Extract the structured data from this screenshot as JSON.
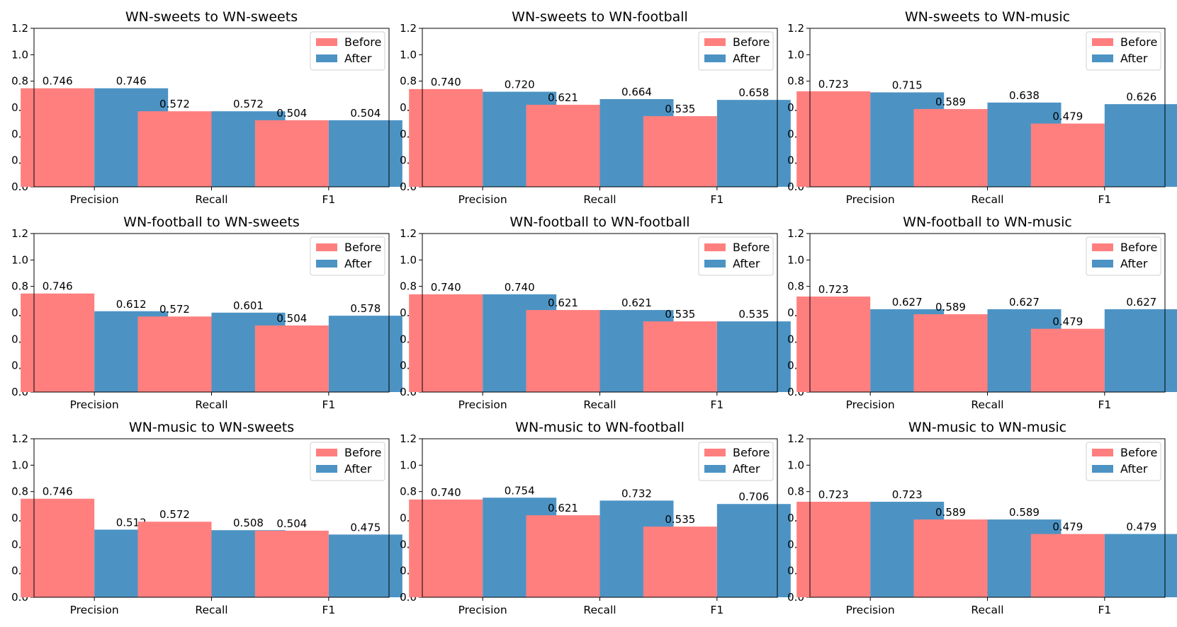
{
  "colors": {
    "before": "#FF7F7F",
    "after": "#4C93C4"
  },
  "legend": {
    "before_label": "Before",
    "after_label": "After",
    "placement": "upper right"
  },
  "chart_data": [
    {
      "type": "bar",
      "title": "WN-sweets to WN-sweets",
      "categories": [
        "Precision",
        "Recall",
        "F1"
      ],
      "series": [
        {
          "name": "Before",
          "values": [
            0.746,
            0.572,
            0.504
          ]
        },
        {
          "name": "After",
          "values": [
            0.746,
            0.572,
            0.504
          ]
        }
      ],
      "ylim": [
        0,
        1.2
      ],
      "yticks": [
        0.0,
        0.2,
        0.4,
        0.6,
        0.8,
        1.0,
        1.2
      ],
      "grid": false,
      "legend": "upper right"
    },
    {
      "type": "bar",
      "title": "WN-sweets to WN-football",
      "categories": [
        "Precision",
        "Recall",
        "F1"
      ],
      "series": [
        {
          "name": "Before",
          "values": [
            0.74,
            0.621,
            0.535
          ]
        },
        {
          "name": "After",
          "values": [
            0.72,
            0.664,
            0.658
          ]
        }
      ],
      "ylim": [
        0,
        1.2
      ],
      "yticks": [
        0.0,
        0.2,
        0.4,
        0.6,
        0.8,
        1.0,
        1.2
      ],
      "grid": false,
      "legend": "upper right"
    },
    {
      "type": "bar",
      "title": "WN-sweets to WN-music",
      "categories": [
        "Precision",
        "Recall",
        "F1"
      ],
      "series": [
        {
          "name": "Before",
          "values": [
            0.723,
            0.589,
            0.479
          ]
        },
        {
          "name": "After",
          "values": [
            0.715,
            0.638,
            0.626
          ]
        }
      ],
      "ylim": [
        0,
        1.2
      ],
      "yticks": [
        0.0,
        0.2,
        0.4,
        0.6,
        0.8,
        1.0,
        1.2
      ],
      "grid": false,
      "legend": "upper right"
    },
    {
      "type": "bar",
      "title": "WN-football to WN-sweets",
      "categories": [
        "Precision",
        "Recall",
        "F1"
      ],
      "series": [
        {
          "name": "Before",
          "values": [
            0.746,
            0.572,
            0.504
          ]
        },
        {
          "name": "After",
          "values": [
            0.612,
            0.601,
            0.578
          ]
        }
      ],
      "ylim": [
        0,
        1.2
      ],
      "yticks": [
        0.0,
        0.2,
        0.4,
        0.6,
        0.8,
        1.0,
        1.2
      ],
      "grid": false,
      "legend": "upper right"
    },
    {
      "type": "bar",
      "title": "WN-football to WN-football",
      "categories": [
        "Precision",
        "Recall",
        "F1"
      ],
      "series": [
        {
          "name": "Before",
          "values": [
            0.74,
            0.621,
            0.535
          ]
        },
        {
          "name": "After",
          "values": [
            0.74,
            0.621,
            0.535
          ]
        }
      ],
      "ylim": [
        0,
        1.2
      ],
      "yticks": [
        0.0,
        0.2,
        0.4,
        0.6,
        0.8,
        1.0,
        1.2
      ],
      "grid": false,
      "legend": "upper right"
    },
    {
      "type": "bar",
      "title": "WN-football to WN-music",
      "categories": [
        "Precision",
        "Recall",
        "F1"
      ],
      "series": [
        {
          "name": "Before",
          "values": [
            0.723,
            0.589,
            0.479
          ]
        },
        {
          "name": "After",
          "values": [
            0.627,
            0.627,
            0.627
          ]
        }
      ],
      "ylim": [
        0,
        1.2
      ],
      "yticks": [
        0.0,
        0.2,
        0.4,
        0.6,
        0.8,
        1.0,
        1.2
      ],
      "grid": false,
      "legend": "upper right"
    },
    {
      "type": "bar",
      "title": "WN-music to WN-sweets",
      "categories": [
        "Precision",
        "Recall",
        "F1"
      ],
      "series": [
        {
          "name": "Before",
          "values": [
            0.746,
            0.572,
            0.504
          ]
        },
        {
          "name": "After",
          "values": [
            0.512,
            0.508,
            0.475
          ]
        }
      ],
      "ylim": [
        0,
        1.2
      ],
      "yticks": [
        0.0,
        0.2,
        0.4,
        0.6,
        0.8,
        1.0,
        1.2
      ],
      "grid": false,
      "legend": "upper right"
    },
    {
      "type": "bar",
      "title": "WN-music to WN-football",
      "categories": [
        "Precision",
        "Recall",
        "F1"
      ],
      "series": [
        {
          "name": "Before",
          "values": [
            0.74,
            0.621,
            0.535
          ]
        },
        {
          "name": "After",
          "values": [
            0.754,
            0.732,
            0.706
          ]
        }
      ],
      "ylim": [
        0,
        1.2
      ],
      "yticks": [
        0.0,
        0.2,
        0.4,
        0.6,
        0.8,
        1.0,
        1.2
      ],
      "grid": false,
      "legend": "upper right"
    },
    {
      "type": "bar",
      "title": "WN-music to WN-music",
      "categories": [
        "Precision",
        "Recall",
        "F1"
      ],
      "series": [
        {
          "name": "Before",
          "values": [
            0.723,
            0.589,
            0.479
          ]
        },
        {
          "name": "After",
          "values": [
            0.723,
            0.589,
            0.479
          ]
        }
      ],
      "ylim": [
        0,
        1.2
      ],
      "yticks": [
        0.0,
        0.2,
        0.4,
        0.6,
        0.8,
        1.0,
        1.2
      ],
      "grid": false,
      "legend": "upper right"
    }
  ]
}
